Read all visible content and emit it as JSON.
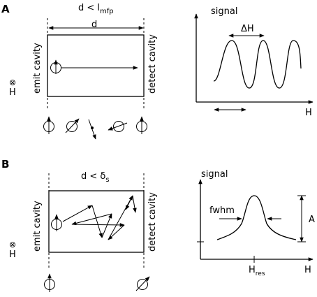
{
  "panel_a": {
    "label": "A",
    "condition": "d < l",
    "condition_sub": "mfp",
    "width_label": "d",
    "emit_label": "emit cavity",
    "detect_label": "detect cavity",
    "field_symbol": "⊗",
    "field_label": "H",
    "graph": {
      "y_label": "signal",
      "x_label": "H",
      "period_label": "ΔH"
    }
  },
  "panel_b": {
    "label": "B",
    "condition": "d < δ",
    "condition_sub": "s",
    "emit_label": "emit cavity",
    "detect_label": "detect cavity",
    "field_symbol": "⊗",
    "field_label": "H",
    "graph": {
      "y_label": "signal",
      "x_label": "H",
      "peak_label": "H",
      "peak_sub": "res",
      "width_label": "fwhm",
      "amplitude_label": "A"
    }
  }
}
